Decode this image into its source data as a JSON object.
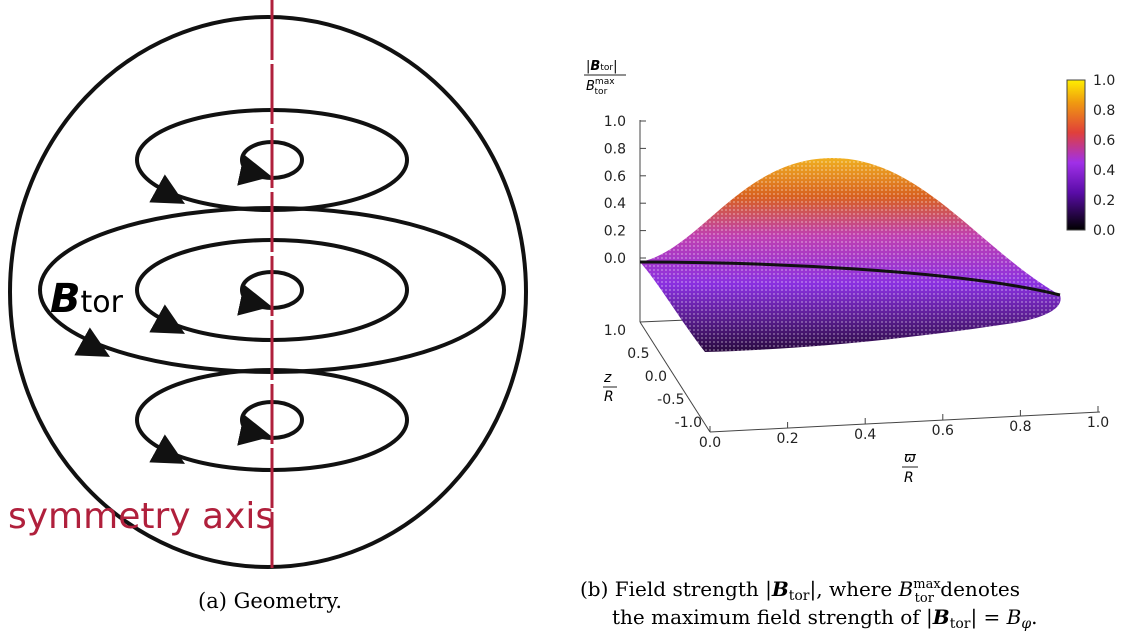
{
  "panel_a": {
    "field_symbol": "B",
    "field_subscript": "tor",
    "axis_label": "symmetry axis",
    "caption": "(a) Geometry."
  },
  "panel_b": {
    "value_label": {
      "numerator_symbol": "B",
      "numerator_subscript": "tor",
      "denominator_symbol": "B",
      "denominator_superscript": "max",
      "denominator_subscript": "tor"
    },
    "value_ticks": [
      "1.0",
      "0.8",
      "0.6",
      "0.4",
      "0.2",
      "0.0"
    ],
    "colorbar_ticks": [
      "1.0",
      "0.8",
      "0.6",
      "0.4",
      "0.2",
      "0.0"
    ],
    "z_label": {
      "numerator": "z",
      "denominator": "R"
    },
    "z_ticks": [
      "1.0",
      "0.5",
      "0.0",
      "-0.5",
      "-1.0"
    ],
    "x_label": {
      "numerator": "ϖ",
      "denominator": "R"
    },
    "x_ticks": [
      "0.0",
      "0.2",
      "0.4",
      "0.6",
      "0.8",
      "1.0"
    ],
    "caption": {
      "label": "(b)",
      "line1": [
        "Field strength |",
        "B",
        "tor",
        "|, where ",
        "B",
        "max",
        "tor",
        " denotes"
      ],
      "line2": [
        "the maximum field strength of |",
        "B",
        "tor",
        "| = ",
        "B",
        "φ",
        "."
      ]
    }
  }
}
